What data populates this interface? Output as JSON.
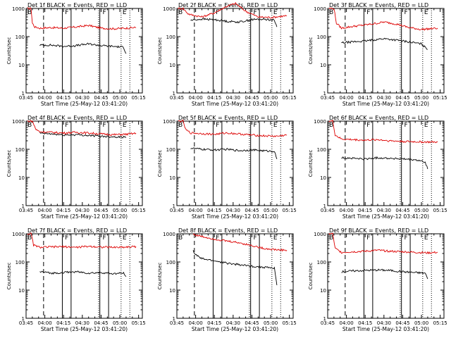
{
  "colors": {
    "events": "#000000",
    "lld": "#dd0000",
    "axes": "#000000",
    "background": "#ffffff"
  },
  "chart_data": [
    {
      "type": "line",
      "title": "Det 1f BLACK = Events, RED = LLD",
      "xlabel": "Start Time (25-May-12 03:41:20)",
      "ylabel": "Counts/sec",
      "xticks": [
        "03:45",
        "04:00",
        "04:15",
        "04:30",
        "04:45",
        "05:00",
        "05:15"
      ],
      "yticks": [
        "1",
        "10",
        "100",
        "1000"
      ],
      "yscale": "log",
      "ylim": [
        1,
        1000
      ],
      "xlim_minutes": [
        225,
        318
      ],
      "markers": [
        {
          "label": "B",
          "time": "03:45"
        },
        {
          "label": "F",
          "time": "04:15"
        },
        {
          "label": "F",
          "time": "04:45"
        },
        {
          "label": "E",
          "time": "05:01"
        }
      ],
      "series": [
        {
          "name": "LLD",
          "x": [
            226,
            229,
            230,
            232,
            236,
            245,
            255,
            265,
            275,
            285,
            295,
            305,
            313
          ],
          "y": [
            1000,
            1000,
            300,
            220,
            200,
            210,
            200,
            220,
            250,
            200,
            190,
            200,
            210
          ]
        },
        {
          "name": "Events",
          "x": [
            236,
            245,
            255,
            265,
            275,
            285,
            295,
            303,
            305
          ],
          "y": [
            50,
            50,
            45,
            48,
            55,
            48,
            45,
            42,
            25
          ]
        }
      ]
    },
    {
      "type": "line",
      "title": "Det 2f BLACK = Events, RED = LLD",
      "xlabel": "Start Time (25-May-12 03:41:20)",
      "ylabel": "Counts/sec",
      "xticks": [
        "03:45",
        "04:00",
        "04:15",
        "04:30",
        "04:45",
        "05:00",
        "05:15"
      ],
      "yticks": [
        "1",
        "10",
        "100",
        "1000"
      ],
      "yscale": "log",
      "ylim": [
        1,
        1000
      ],
      "xlim_minutes": [
        225,
        318
      ],
      "markers": [
        {
          "label": "B",
          "time": "03:45"
        },
        {
          "label": "F",
          "time": "04:15"
        },
        {
          "label": "F",
          "time": "04:45"
        },
        {
          "label": "E",
          "time": "05:01"
        }
      ],
      "series": [
        {
          "name": "LLD",
          "x": [
            226,
            230,
            232,
            234,
            236,
            245,
            255,
            265,
            272,
            280,
            290,
            300,
            313
          ],
          "y": [
            1000,
            1000,
            800,
            650,
            600,
            500,
            700,
            1200,
            1500,
            800,
            500,
            480,
            550
          ]
        },
        {
          "name": "Events",
          "x": [
            236,
            245,
            255,
            265,
            275,
            285,
            295,
            303,
            305
          ],
          "y": [
            380,
            420,
            400,
            350,
            330,
            400,
            420,
            380,
            220
          ]
        }
      ]
    },
    {
      "type": "line",
      "title": "Det 3f BLACK = Events, RED = LLD",
      "xlabel": "Start Time (25-May-12 03:41:20)",
      "ylabel": "Counts/sec",
      "xticks": [
        "03:45",
        "04:00",
        "04:15",
        "04:30",
        "04:45",
        "05:00",
        "05:15"
      ],
      "yticks": [
        "1",
        "10",
        "100",
        "1000"
      ],
      "yscale": "log",
      "ylim": [
        1,
        1000
      ],
      "xlim_minutes": [
        225,
        318
      ],
      "markers": [
        {
          "label": "B",
          "time": "03:45"
        },
        {
          "label": "F",
          "time": "04:15"
        },
        {
          "label": "F",
          "time": "04:45"
        },
        {
          "label": "E",
          "time": "05:01"
        }
      ],
      "series": [
        {
          "name": "LLD",
          "x": [
            226,
            230,
            232,
            236,
            245,
            255,
            265,
            270,
            280,
            290,
            300,
            313
          ],
          "y": [
            1000,
            1000,
            300,
            200,
            230,
            260,
            300,
            330,
            280,
            210,
            180,
            200
          ]
        },
        {
          "name": "Events",
          "x": [
            236,
            245,
            255,
            265,
            270,
            280,
            290,
            300,
            305
          ],
          "y": [
            60,
            65,
            70,
            80,
            85,
            75,
            65,
            55,
            35
          ]
        }
      ]
    },
    {
      "type": "line",
      "title": "Det 4f BLACK = Events, RED = LLD",
      "xlabel": "Start Time (25-May-12 03:41:20)",
      "ylabel": "Counts/sec",
      "xticks": [
        "03:45",
        "04:00",
        "04:15",
        "04:30",
        "04:45",
        "05:00",
        "05:15"
      ],
      "yticks": [
        "1",
        "10",
        "100",
        "1000"
      ],
      "yscale": "log",
      "ylim": [
        1,
        1000
      ],
      "xlim_minutes": [
        225,
        318
      ],
      "markers": [
        {
          "label": "B",
          "time": "03:45"
        },
        {
          "label": "F",
          "time": "04:15"
        },
        {
          "label": "F",
          "time": "04:45"
        },
        {
          "label": "E",
          "time": "05:01"
        }
      ],
      "series": [
        {
          "name": "LLD",
          "x": [
            226,
            230,
            233,
            236,
            245,
            255,
            265,
            275,
            285,
            295,
            305,
            313
          ],
          "y": [
            1000,
            1000,
            500,
            420,
            400,
            380,
            400,
            380,
            350,
            330,
            340,
            370
          ]
        },
        {
          "name": "Events",
          "x": [
            236,
            245,
            255,
            265,
            275,
            285,
            295,
            303,
            305
          ],
          "y": [
            370,
            350,
            320,
            330,
            310,
            290,
            280,
            270,
            260
          ]
        }
      ]
    },
    {
      "type": "line",
      "title": "Det 5f BLACK = Events, RED = LLD",
      "xlabel": "Start Time (25-May-12 03:41:20)",
      "ylabel": "Counts/sec",
      "xticks": [
        "03:45",
        "04:00",
        "04:15",
        "04:30",
        "04:45",
        "05:00",
        "05:15"
      ],
      "yticks": [
        "1",
        "10",
        "100",
        "1000"
      ],
      "yscale": "log",
      "ylim": [
        1,
        1000
      ],
      "xlim_minutes": [
        225,
        318
      ],
      "markers": [
        {
          "label": "B",
          "time": "03:45"
        },
        {
          "label": "F",
          "time": "04:15"
        },
        {
          "label": "F",
          "time": "04:45"
        },
        {
          "label": "E",
          "time": "05:01"
        }
      ],
      "series": [
        {
          "name": "LLD",
          "x": [
            226,
            230,
            232,
            236,
            245,
            255,
            265,
            275,
            285,
            295,
            305,
            313
          ],
          "y": [
            1000,
            1000,
            500,
            380,
            360,
            340,
            380,
            350,
            320,
            300,
            290,
            320
          ]
        },
        {
          "name": "Events",
          "x": [
            236,
            245,
            255,
            265,
            275,
            285,
            295,
            303,
            305
          ],
          "y": [
            110,
            100,
            95,
            100,
            90,
            95,
            88,
            85,
            45
          ]
        }
      ]
    },
    {
      "type": "line",
      "title": "Det 6f BLACK = Events, RED = LLD",
      "xlabel": "Start Time (25-May-12 03:41:20)",
      "ylabel": "Counts/sec",
      "xticks": [
        "03:45",
        "04:00",
        "04:15",
        "04:30",
        "04:45",
        "05:00",
        "05:15"
      ],
      "yticks": [
        "1",
        "10",
        "100",
        "1000"
      ],
      "yscale": "log",
      "ylim": [
        1,
        1000
      ],
      "xlim_minutes": [
        225,
        318
      ],
      "markers": [
        {
          "label": "B",
          "time": "03:45"
        },
        {
          "label": "F",
          "time": "04:15"
        },
        {
          "label": "F",
          "time": "04:45"
        },
        {
          "label": "E",
          "time": "05:01"
        }
      ],
      "series": [
        {
          "name": "LLD",
          "x": [
            226,
            229,
            231,
            236,
            245,
            255,
            265,
            275,
            285,
            295,
            305,
            313
          ],
          "y": [
            1000,
            1000,
            320,
            230,
            220,
            210,
            220,
            200,
            190,
            185,
            180,
            180
          ]
        },
        {
          "name": "Events",
          "x": [
            236,
            245,
            255,
            265,
            275,
            285,
            295,
            303,
            305
          ],
          "y": [
            50,
            48,
            45,
            50,
            48,
            45,
            42,
            35,
            20
          ]
        }
      ]
    },
    {
      "type": "line",
      "title": "Det 7f BLACK = Events, RED = LLD",
      "xlabel": "Start Time (25-May-12 03:41:20)",
      "ylabel": "Counts/sec",
      "xticks": [
        "03:45",
        "04:00",
        "04:15",
        "04:30",
        "04:45",
        "05:00",
        "05:15"
      ],
      "yticks": [
        "1",
        "10",
        "100",
        "1000"
      ],
      "yscale": "log",
      "ylim": [
        1,
        1000
      ],
      "xlim_minutes": [
        225,
        318
      ],
      "markers": [
        {
          "label": "B",
          "time": "03:45"
        },
        {
          "label": "F",
          "time": "04:15"
        },
        {
          "label": "F",
          "time": "04:45"
        },
        {
          "label": "E",
          "time": "05:01"
        }
      ],
      "series": [
        {
          "name": "LLD",
          "x": [
            226,
            229,
            231,
            236,
            245,
            255,
            265,
            275,
            285,
            295,
            305,
            313
          ],
          "y": [
            1000,
            1000,
            400,
            330,
            340,
            350,
            330,
            360,
            340,
            330,
            340,
            350
          ]
        },
        {
          "name": "Events",
          "x": [
            236,
            245,
            255,
            265,
            275,
            285,
            295,
            303,
            305
          ],
          "y": [
            45,
            40,
            42,
            45,
            40,
            42,
            38,
            40,
            30
          ]
        }
      ]
    },
    {
      "type": "line",
      "title": "Det 8f BLACK = Events, RED = LLD",
      "xlabel": "Start Time (25-May-12 03:41:20)",
      "ylabel": "Counts/sec",
      "xticks": [
        "03:45",
        "04:00",
        "04:15",
        "04:30",
        "04:45",
        "05:00",
        "05:15"
      ],
      "yticks": [
        "1",
        "10",
        "100",
        "1000"
      ],
      "yscale": "log",
      "ylim": [
        1,
        1000
      ],
      "xlim_minutes": [
        225,
        318
      ],
      "markers": [
        {
          "label": "B",
          "time": "03:45"
        },
        {
          "label": "F",
          "time": "04:15"
        },
        {
          "label": "F",
          "time": "04:45"
        },
        {
          "label": "E",
          "time": "05:01"
        }
      ],
      "series": [
        {
          "name": "LLD",
          "x": [
            238,
            240,
            245,
            255,
            265,
            275,
            285,
            295,
            305,
            313
          ],
          "y": [
            1000,
            900,
            800,
            650,
            550,
            480,
            380,
            300,
            270,
            260
          ]
        },
        {
          "name": "Events",
          "x": [
            238,
            240,
            245,
            255,
            265,
            275,
            285,
            295,
            303,
            305
          ],
          "y": [
            250,
            180,
            130,
            110,
            90,
            80,
            70,
            65,
            60,
            15
          ]
        }
      ]
    },
    {
      "type": "line",
      "title": "Det 9f BLACK = Events, RED = LLD",
      "xlabel": "Start Time (25-May-12 03:41:20)",
      "ylabel": "Counts/sec",
      "xticks": [
        "03:45",
        "04:00",
        "04:15",
        "04:30",
        "04:45",
        "05:00",
        "05:15"
      ],
      "yticks": [
        "1",
        "10",
        "100",
        "1000"
      ],
      "yscale": "log",
      "ylim": [
        1,
        1000
      ],
      "xlim_minutes": [
        225,
        318
      ],
      "markers": [
        {
          "label": "B",
          "time": "03:45"
        },
        {
          "label": "F",
          "time": "04:15"
        },
        {
          "label": "F",
          "time": "04:45"
        },
        {
          "label": "E",
          "time": "05:01"
        }
      ],
      "series": [
        {
          "name": "LLD",
          "x": [
            226,
            229,
            231,
            236,
            245,
            255,
            265,
            275,
            285,
            295,
            305,
            313
          ],
          "y": [
            1000,
            1000,
            300,
            220,
            230,
            240,
            260,
            240,
            230,
            220,
            210,
            220
          ]
        },
        {
          "name": "Events",
          "x": [
            236,
            245,
            255,
            265,
            275,
            285,
            295,
            303,
            305
          ],
          "y": [
            45,
            48,
            50,
            52,
            50,
            45,
            42,
            40,
            25
          ]
        }
      ]
    }
  ]
}
